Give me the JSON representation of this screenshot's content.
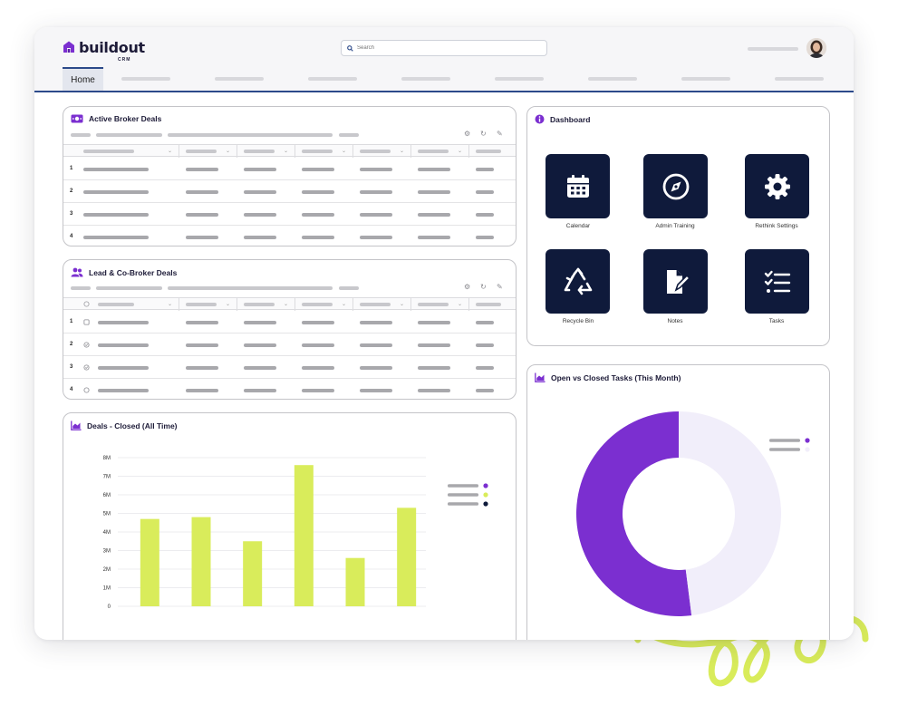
{
  "app": {
    "logo_text": "buildout",
    "logo_sub": "CRM"
  },
  "search": {
    "placeholder": "Search"
  },
  "nav": {
    "home_label": "Home"
  },
  "panels": {
    "active_broker": {
      "title": "Active Broker Deals",
      "rows": [
        "1",
        "2",
        "3",
        "4"
      ]
    },
    "lead_cobroker": {
      "title": "Lead & Co-Broker Deals",
      "rows": [
        "1",
        "2",
        "3",
        "4"
      ]
    },
    "deals_closed": {
      "title": "Deals - Closed (All Time)"
    },
    "dashboard": {
      "title": "Dashboard",
      "tiles": [
        {
          "label": "Calendar",
          "icon": "calendar-icon"
        },
        {
          "label": "Admin Training",
          "icon": "compass-icon"
        },
        {
          "label": "Rethink Settings",
          "icon": "gear-icon"
        },
        {
          "label": "Recycle Bin",
          "icon": "recycle-icon"
        },
        {
          "label": "Notes",
          "icon": "note-edit-icon"
        },
        {
          "label": "Tasks",
          "icon": "checklist-icon"
        }
      ]
    },
    "open_closed": {
      "title": "Open vs Closed Tasks (This Month)"
    }
  },
  "colors": {
    "accent": "#7b2fd0",
    "navy": "#0f1a3b",
    "lime": "#d9ec5b",
    "lavender": "#f1eefa",
    "rule": "#2c4a8a"
  },
  "chart_data": [
    {
      "type": "bar",
      "title": "Deals - Closed (All Time)",
      "categories": [
        "",
        "",
        "",
        "",
        "",
        ""
      ],
      "values": [
        4.7,
        4.8,
        3.5,
        7.6,
        2.6,
        5.3
      ],
      "yticks": [
        "0",
        "1M",
        "2M",
        "3M",
        "4M",
        "5M",
        "6M",
        "7M",
        "8M"
      ],
      "ylim": [
        0,
        8
      ],
      "grid": true,
      "legend_colors": [
        "#7b2fd0",
        "#d9ec5b",
        "#0f1a3b"
      ],
      "bar_color": "#d9ec5b"
    },
    {
      "type": "pie",
      "title": "Open vs Closed Tasks (This Month)",
      "values": [
        52,
        48
      ],
      "colors": [
        "#7b2fd0",
        "#f1eefa"
      ],
      "donut": true
    }
  ]
}
